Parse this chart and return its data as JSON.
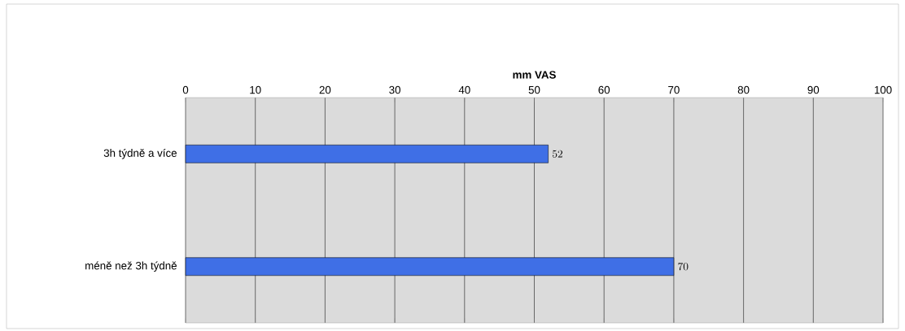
{
  "chart_data": {
    "type": "bar",
    "orientation": "horizontal",
    "xlabel": "mm VAS",
    "categories": [
      "3h týdně a více",
      "méně než 3h týdně"
    ],
    "values": [
      52,
      70
    ],
    "color": "#3f6fe6",
    "xlim": [
      0,
      100
    ],
    "xticks": [
      0,
      10,
      20,
      30,
      40,
      50,
      60,
      70,
      80,
      90,
      100
    ],
    "grid": "x",
    "data_labels": true
  }
}
